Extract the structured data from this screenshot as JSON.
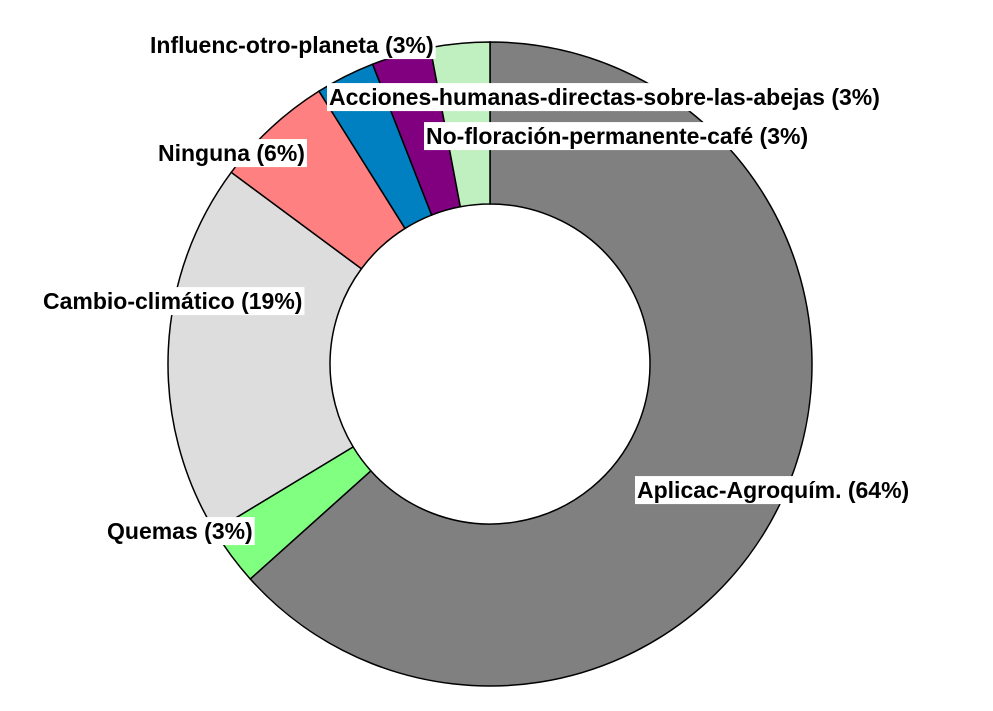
{
  "chart_data": {
    "type": "pie",
    "subtype": "donut",
    "title": "",
    "slices": [
      {
        "label": "Aplicac-Agroquím. (64%)",
        "name": "Aplicac-Agroquím.",
        "value": 64,
        "color": "#808080"
      },
      {
        "label": "Quemas (3%)",
        "name": "Quemas",
        "value": 3,
        "color": "#80ff80"
      },
      {
        "label": "Cambio-climático (19%)",
        "name": "Cambio-climático",
        "value": 19,
        "color": "#dddddd"
      },
      {
        "label": "Ninguna (6%)",
        "name": "Ninguna",
        "value": 6,
        "color": "#ff8080"
      },
      {
        "label": "Influenc-otro-planeta (3%)",
        "name": "Influenc-otro-planeta",
        "value": 3,
        "color": "#0080c0"
      },
      {
        "label": "Acciones-humanas-directas-sobre-las-abejas (3%)",
        "name": "Acciones-humanas-directas-sobre-las-abejas",
        "value": 3,
        "color": "#800080"
      },
      {
        "label": "No-floración-permanente-café (3%)",
        "name": "No-floración-permanente-café",
        "value": 3,
        "color": "#c0f0c0"
      }
    ],
    "start": "12 o'clock",
    "direction": "clockwise",
    "legend": "none"
  }
}
